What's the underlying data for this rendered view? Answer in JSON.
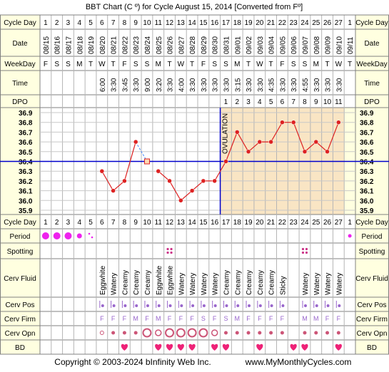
{
  "title": "BBT Chart (C º) for Cycle August 15, 2014  [Converted from Fº]",
  "footer": {
    "copyright": "Copyright © 2003-2024 bInfinity Web Inc.",
    "site": "www.MyMonthlyCycles.com"
  },
  "colors": {
    "background": "#FFFFFF",
    "row_bg": "#FFFFE0",
    "label_bg": "#FFFFE0",
    "luteal_bg": "#F9E5C4",
    "grid": "#B5B5B5",
    "border": "#808080",
    "temp_line": "#DD2222",
    "cover_line": "#0000CC",
    "ovulation_line": "#0000CC",
    "accent_magenta": "#EE22EE",
    "cm_purple": "#7700AA",
    "opening_fill": "#CC5577",
    "heart": "#EE2277"
  },
  "row_labels": {
    "cycle_day": "Cycle Day",
    "date": "Date",
    "weekday": "WeekDay",
    "time": "Time",
    "dpo": "DPO",
    "period": "Period",
    "spotting": "Spotting",
    "cerv_fluid": "Cerv Fluid",
    "cerv_pos": "Cerv Pos",
    "cerv_firm": "Cerv Firm",
    "cerv_opn": "Cerv Opn",
    "bd": "BD"
  },
  "cycle_days": [
    "1",
    "2",
    "3",
    "4",
    "5",
    "6",
    "7",
    "8",
    "9",
    "10",
    "11",
    "12",
    "13",
    "14",
    "15",
    "16",
    "17",
    "18",
    "19",
    "20",
    "21",
    "22",
    "23",
    "24",
    "25",
    "26",
    "27",
    "1"
  ],
  "dates": [
    "08/15",
    "08/16",
    "08/17",
    "08/18",
    "08/19",
    "08/20",
    "08/21",
    "08/22",
    "08/23",
    "08/24",
    "08/25",
    "08/26",
    "08/27",
    "08/28",
    "08/29",
    "08/30",
    "08/31",
    "09/01",
    "09/02",
    "09/03",
    "09/04",
    "09/05",
    "09/06",
    "09/07",
    "09/08",
    "09/09",
    "09/10",
    "09/11"
  ],
  "weekdays": [
    "F",
    "S",
    "S",
    "M",
    "T",
    "W",
    "T",
    "F",
    "S",
    "S",
    "M",
    "T",
    "W",
    "T",
    "F",
    "S",
    "S",
    "M",
    "T",
    "W",
    "T",
    "F",
    "S",
    "S",
    "M",
    "T",
    "W",
    "T"
  ],
  "times": [
    "",
    "",
    "",
    "",
    "",
    "6:00",
    "3:30",
    "3:45",
    "3:30",
    "9:00",
    "3:20",
    "3:30",
    "4:00",
    "3:30",
    "3:30",
    "3:30",
    "3:30",
    "3:15",
    "3:30",
    "3:30",
    "4:35",
    "3:30",
    "3:30",
    "4:55",
    "3:30",
    "3:30",
    "3:30",
    ""
  ],
  "dpo": [
    "",
    "",
    "",
    "",
    "",
    "",
    "",
    "",
    "",
    "",
    "",
    "",
    "",
    "",
    "",
    "",
    "1",
    "2",
    "3",
    "4",
    "5",
    "6",
    "7",
    "8",
    "9",
    "10",
    "11",
    ""
  ],
  "ovulation_label": "OVULATION",
  "cover_line_value": 36.4,
  "ovulation_after_day": 16,
  "chart_data": {
    "type": "line",
    "title": "BBT Chart (C º) for Cycle August 15, 2014  [Converted from Fº]",
    "xlabel": "Cycle Day",
    "ylabel": "",
    "ylim": [
      35.9,
      36.9
    ],
    "yticks": [
      "36.9",
      "36.8",
      "36.7",
      "36.6",
      "36.5",
      "36.4",
      "36.3",
      "36.2",
      "36.1",
      "36.0",
      "35.9"
    ],
    "x": [
      6,
      7,
      8,
      9,
      10,
      11,
      12,
      13,
      14,
      15,
      16,
      17,
      18,
      19,
      20,
      21,
      22,
      23,
      24,
      25,
      26,
      27
    ],
    "values": [
      36.3,
      36.1,
      36.2,
      36.6,
      null,
      36.3,
      36.2,
      36.0,
      36.1,
      36.2,
      36.2,
      36.4,
      36.7,
      36.5,
      36.6,
      36.6,
      36.8,
      36.8,
      36.5,
      36.6,
      36.5,
      36.8
    ],
    "discarded_point": {
      "x": 10,
      "y": 36.4
    },
    "cover_line": 36.4,
    "ovulation_day": 16,
    "grid": true
  },
  "period": {
    "1": "heavy",
    "2": "heavy",
    "3": "heavy",
    "4": "medium",
    "5": "spot",
    "28": "light"
  },
  "spotting_days": [
    12,
    24
  ],
  "cerv_fluid": {
    "6": "Eggwhite",
    "7": "Watery",
    "8": "Creamy",
    "9": "Creamy",
    "10": "Creamy",
    "11": "Eggwhite",
    "12": "Eggwhite",
    "13": "Watery",
    "14": "Watery",
    "15": "Watery",
    "16": "Watery",
    "17": "Creamy",
    "18": "Creamy",
    "19": "Creamy",
    "20": "Creamy",
    "21": "Creamy",
    "22": "Sticky",
    "23": "",
    "24": "Watery",
    "25": "Watery",
    "26": "Watery",
    "27": "Watery"
  },
  "cerv_pos_days": [
    6,
    7,
    8,
    9,
    10,
    11,
    12,
    13,
    14,
    15,
    16,
    17,
    18,
    19,
    20,
    21,
    22,
    24,
    25,
    26,
    27
  ],
  "cerv_firm": {
    "6": "F",
    "7": "F",
    "8": "F",
    "9": "M",
    "10": "F",
    "11": "M",
    "12": "F",
    "13": "F",
    "14": "F",
    "15": "S",
    "16": "F",
    "17": "S",
    "18": "M",
    "19": "F",
    "20": "F",
    "21": "F",
    "22": "F",
    "24": "M",
    "25": "M",
    "26": "F",
    "27": "F"
  },
  "cerv_opn": {
    "6": "open",
    "7": "dot",
    "8": "dot",
    "9": "dot",
    "10": "large",
    "11": "medium",
    "12": "large",
    "13": "large",
    "14": "large",
    "15": "large",
    "16": "medium",
    "17": "dot",
    "18": "dot",
    "19": "dot",
    "20": "dot",
    "21": "dot",
    "22": "dot",
    "24": "dot",
    "25": "dot",
    "26": "dot",
    "27": "dot"
  },
  "bd_days": [
    8,
    11,
    12,
    13,
    14,
    16,
    17,
    20,
    23,
    24,
    27
  ]
}
